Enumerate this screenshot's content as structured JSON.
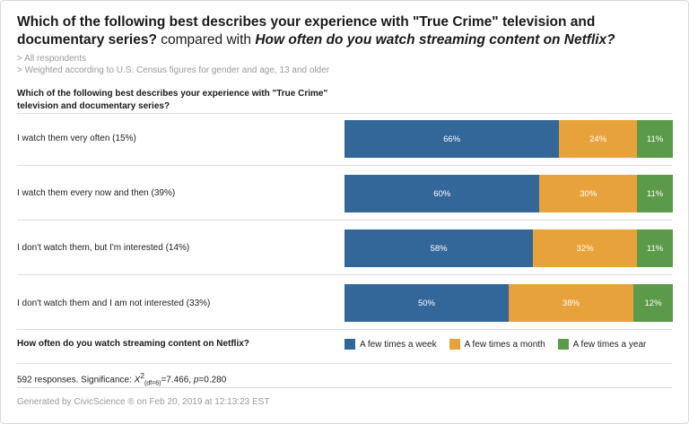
{
  "header": {
    "title_main": "Which of the following best describes your experience with \"True Crime\" television and documentary series?",
    "title_connector": " compared with ",
    "title_compare": "How often do you watch streaming content on Netflix?",
    "notes": [
      "> All respondents",
      "> Weighted according to U.S. Census figures for gender and age, 13 and older"
    ]
  },
  "question_label": "Which of the following best describes your experience with \"True Crime\" television and documentary series?",
  "legend_question": "How often do you watch streaming content on Netflix?",
  "colors": {
    "week": "#336699",
    "month": "#E8A23B",
    "year": "#5A9A48"
  },
  "chart_data": {
    "type": "bar",
    "orientation": "horizontal",
    "stacked": true,
    "categories": [
      "I watch them very often (15%)",
      "I watch them every now and then (39%)",
      "I don't watch them, but I'm interested (14%)",
      "I don't watch them and I am not interested (33%)"
    ],
    "series": [
      {
        "name": "A few times a week",
        "values": [
          66,
          60,
          58,
          50
        ],
        "labels": [
          "66%",
          "60%",
          "58%",
          "50%"
        ]
      },
      {
        "name": "A few times a month",
        "values": [
          24,
          30,
          32,
          38
        ],
        "labels": [
          "24%",
          "30%",
          "32%",
          "38%"
        ]
      },
      {
        "name": "A few times a year",
        "values": [
          11,
          11,
          11,
          12
        ],
        "labels": [
          "11%",
          "11%",
          "11%",
          "12%"
        ]
      }
    ],
    "xlim": [
      0,
      100
    ],
    "legend_position": "bottom"
  },
  "stats": {
    "prefix": "592 responses. Significance: ",
    "chi_symbol": "X",
    "chi_exp": "2",
    "df": "(df=6)",
    "chi_value": "=7.466, ",
    "p_label": "p",
    "p_value": "=0.280"
  },
  "footer": "Generated by CivicScience ® on Feb 20, 2019 at 12:13:23 EST"
}
